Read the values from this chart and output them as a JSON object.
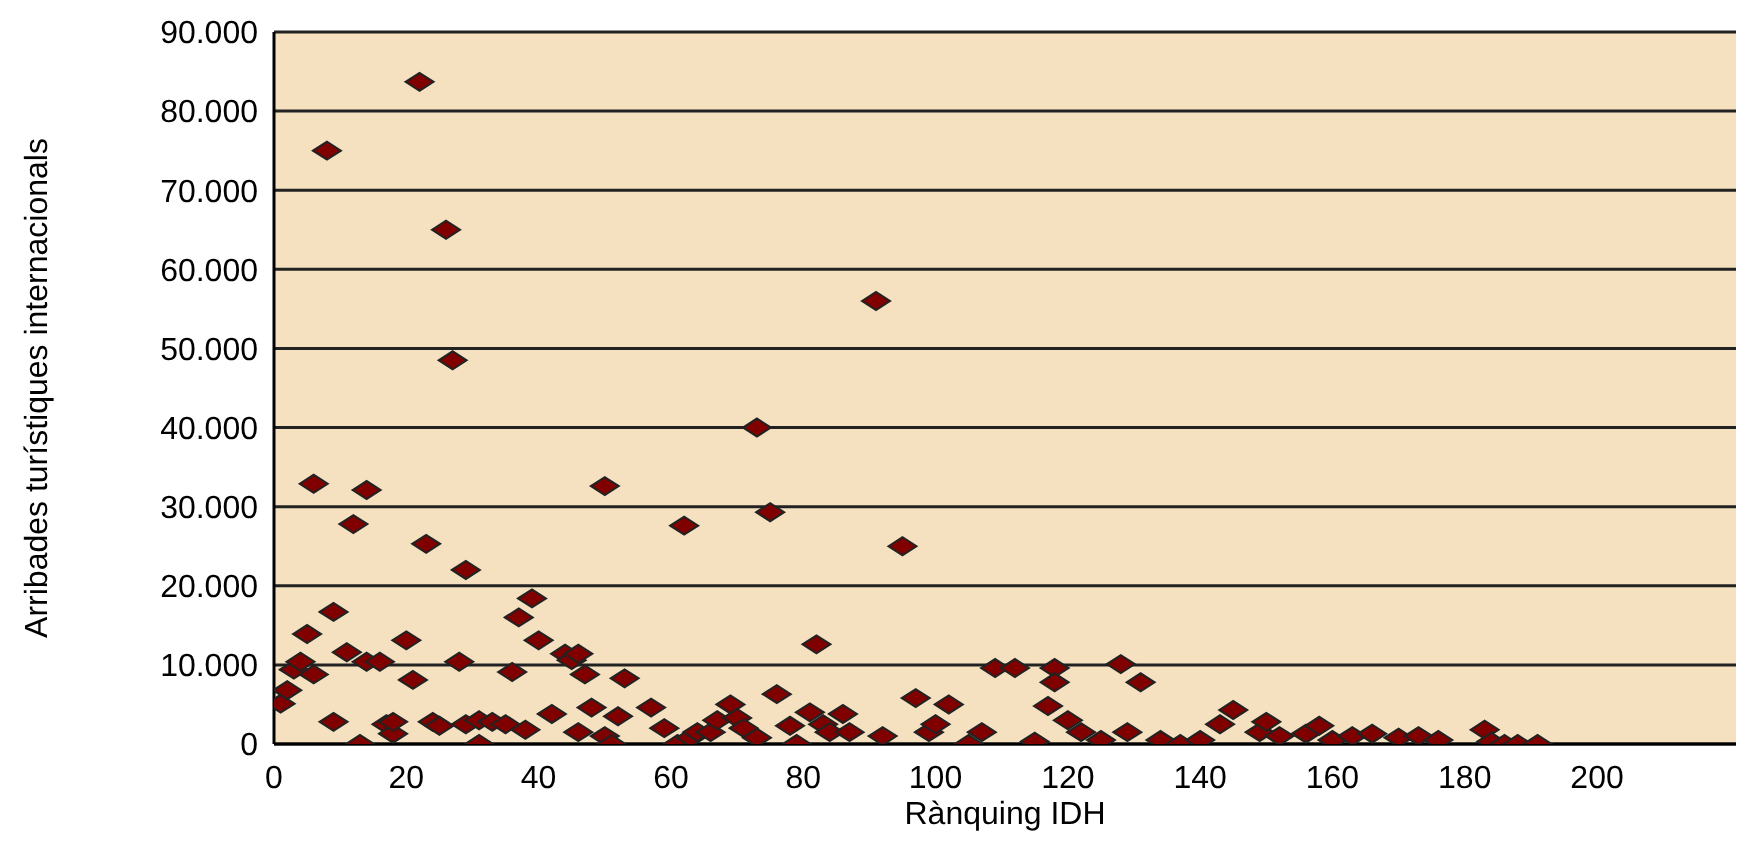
{
  "chart_data": {
    "type": "scatter",
    "xlabel": "Rànquing IDH",
    "ylabel": "Arribades turístiques internacionals",
    "x": [
      1,
      2,
      3,
      4,
      5,
      6,
      6,
      8,
      9,
      9,
      11,
      12,
      13,
      14,
      14,
      16,
      17,
      18,
      18,
      20,
      21,
      22,
      23,
      24,
      25,
      26,
      27,
      28,
      29,
      29,
      31,
      31,
      33,
      35,
      36,
      37,
      38,
      39,
      40,
      42,
      44,
      45,
      46,
      46,
      47,
      48,
      50,
      50,
      51,
      52,
      53,
      57,
      59,
      61,
      62,
      63,
      64,
      66,
      67,
      69,
      70,
      71,
      73,
      73,
      75,
      76,
      78,
      79,
      81,
      82,
      83,
      84,
      86,
      87,
      91,
      92,
      95,
      97,
      99,
      100,
      102,
      105,
      107,
      109,
      112,
      115,
      117,
      118,
      118,
      120,
      122,
      125,
      128,
      129,
      131,
      134,
      137,
      140,
      143,
      145,
      149,
      150,
      152,
      156,
      158,
      160,
      163,
      166,
      170,
      173,
      176,
      183,
      184,
      186,
      188,
      191
    ],
    "series": [
      {
        "color": "#800000",
        "values": [
          5100,
          6800,
          9400,
          10400,
          13900,
          32900,
          8800,
          75000,
          16700,
          2800,
          11600,
          27800,
          0,
          32100,
          10400,
          10400,
          2500,
          1300,
          2800,
          13100,
          8100,
          83700,
          25300,
          2800,
          2300,
          65000,
          48500,
          10400,
          22000,
          2500,
          0,
          3000,
          2800,
          2500,
          9100,
          16000,
          1800,
          18400,
          13100,
          3800,
          11400,
          10600,
          11400,
          1500,
          8800,
          4600,
          32600,
          1000,
          0,
          3500,
          8300,
          4600,
          2000,
          0,
          27600,
          800,
          1500,
          1500,
          3000,
          5000,
          3300,
          2000,
          40000,
          800,
          29300,
          6300,
          2300,
          0,
          4000,
          12600,
          2500,
          1500,
          3800,
          1500,
          56000,
          1000,
          25000,
          5800,
          1500,
          2500,
          5000,
          0,
          1500,
          9600,
          9600,
          300,
          4800,
          9600,
          7800,
          3000,
          1500,
          500,
          10100,
          1500,
          7800,
          500,
          0,
          500,
          2500,
          4300,
          1500,
          2800,
          1000,
          1300,
          2300,
          500,
          1000,
          1300,
          800,
          1000,
          500,
          1800,
          300,
          0,
          0,
          0
        ]
      }
    ],
    "xlim": [
      0,
      221
    ],
    "xticks": [
      0,
      20,
      40,
      60,
      80,
      100,
      120,
      140,
      160,
      180,
      200
    ],
    "ylim": [
      0,
      90000
    ],
    "yticks": [
      {
        "value": 0,
        "label": "0"
      },
      {
        "value": 10000,
        "label": "10.000"
      },
      {
        "value": 20000,
        "label": "20.000"
      },
      {
        "value": 30000,
        "label": "30.000"
      },
      {
        "value": 40000,
        "label": "40.000"
      },
      {
        "value": 50000,
        "label": "50.000"
      },
      {
        "value": 60000,
        "label": "60.000"
      },
      {
        "value": 70000,
        "label": "70.000"
      },
      {
        "value": 80000,
        "label": "80.000"
      },
      {
        "value": 90000,
        "label": "90.000"
      }
    ],
    "grid": "y",
    "marker": "diamond",
    "legend": false
  }
}
